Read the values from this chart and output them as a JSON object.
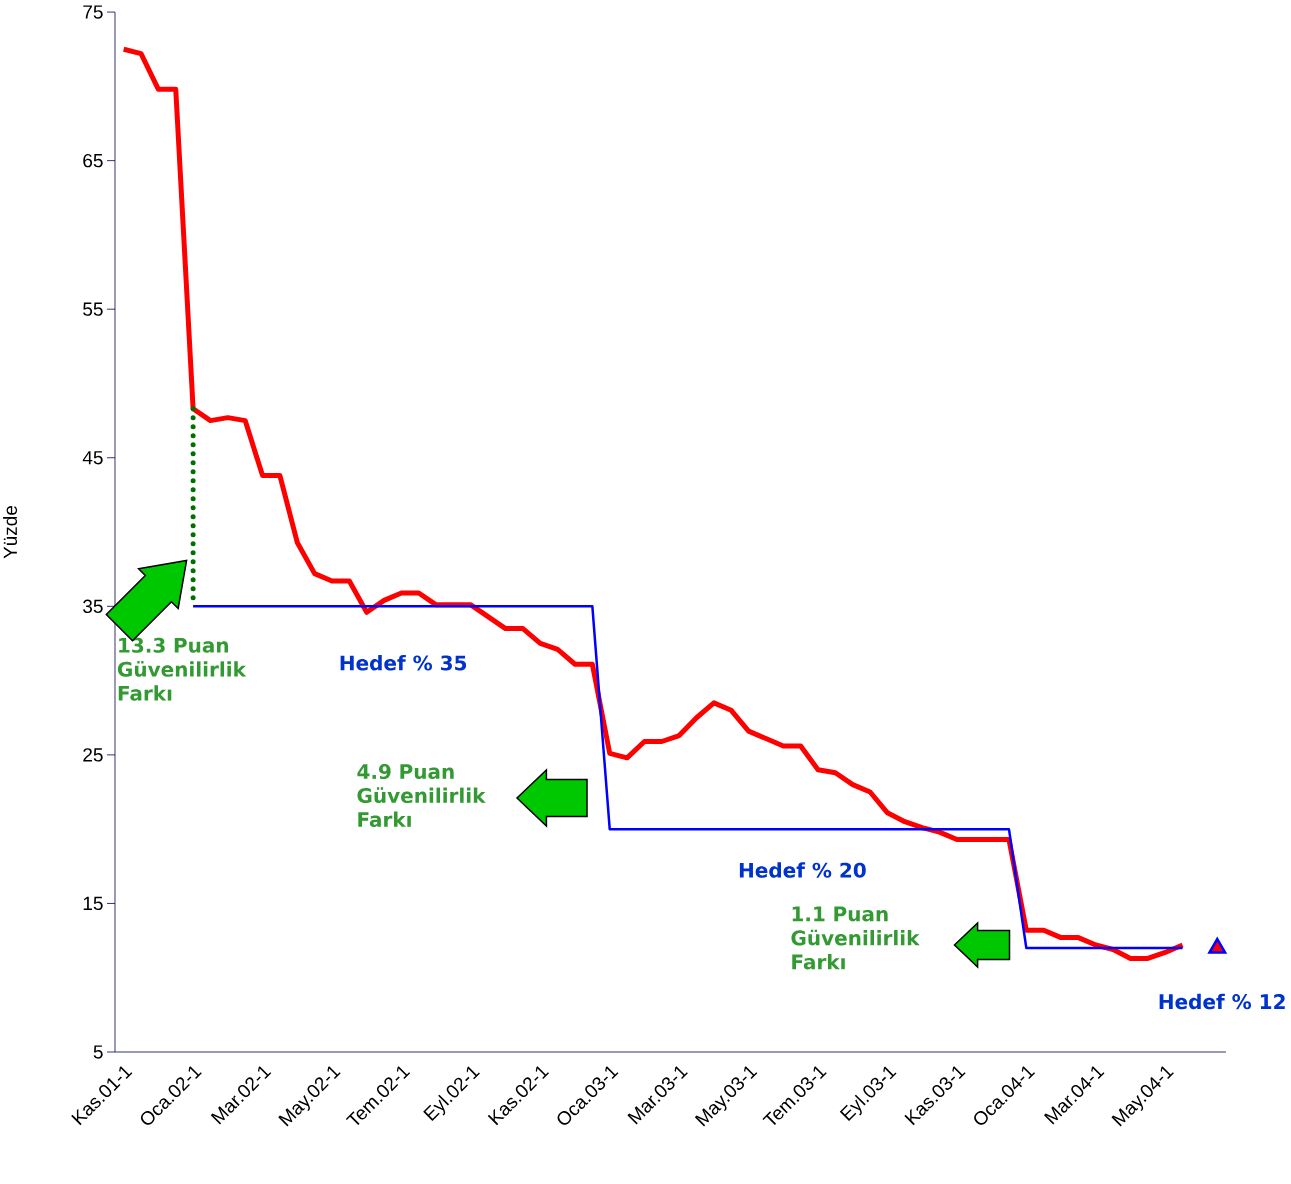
{
  "chart_data": {
    "type": "line",
    "ylabel": "Yüzde",
    "categories": [
      "Kas.01-1",
      null,
      null,
      null,
      "Oca.02-1",
      null,
      null,
      null,
      "Mar.02-1",
      null,
      null,
      null,
      "May.02-1",
      null,
      null,
      null,
      "Tem.02-1",
      null,
      null,
      null,
      "Eyl.02-1",
      null,
      null,
      null,
      "Kas.02-1",
      null,
      null,
      null,
      "Oca.03-1",
      null,
      null,
      null,
      "Mar.03-1",
      null,
      null,
      null,
      "May.03-1",
      null,
      null,
      null,
      "Tem.03-1",
      null,
      null,
      null,
      "Eyl.03-1",
      null,
      null,
      null,
      "Kas.03-1",
      null,
      null,
      null,
      "Oca.04-1",
      null,
      null,
      null,
      "Mar.04-1",
      null,
      null,
      null,
      "May.04-1",
      null,
      null,
      null
    ],
    "ylim": [
      5,
      75
    ],
    "yticks": [
      5,
      15,
      25,
      35,
      45,
      55,
      65,
      75
    ],
    "series": [
      {
        "color": "#ff0000",
        "values": [
          72.5,
          72.2,
          69.8,
          69.8,
          48.3,
          47.5,
          47.7,
          47.5,
          43.8,
          43.8,
          39.3,
          37.2,
          36.7,
          36.7,
          34.6,
          35.4,
          35.9,
          35.9,
          35.1,
          35.1,
          35.1,
          34.3,
          33.5,
          33.5,
          32.5,
          32.1,
          31.1,
          31.1,
          25.1,
          24.8,
          25.9,
          25.9,
          26.3,
          27.5,
          28.5,
          28.0,
          26.6,
          26.1,
          25.6,
          25.6,
          24.0,
          23.8,
          23.0,
          22.5,
          21.1,
          20.5,
          20.1,
          19.8,
          19.3,
          19.3,
          19.3,
          19.3,
          13.2,
          13.2,
          12.7,
          12.7,
          12.2,
          11.9,
          11.3,
          11.3,
          11.7,
          12.2,
          null,
          null
        ]
      },
      {
        "color": "#0000ff",
        "values": [
          null,
          null,
          null,
          null,
          35,
          35,
          35,
          35,
          35,
          35,
          35,
          35,
          35,
          35,
          35,
          35,
          35,
          35,
          35,
          35,
          35,
          35,
          35,
          35,
          35,
          35,
          35,
          35,
          20,
          20,
          20,
          20,
          20,
          20,
          20,
          20,
          20,
          20,
          20,
          20,
          20,
          20,
          20,
          20,
          20,
          20,
          20,
          20,
          20,
          20,
          20,
          20,
          12,
          12,
          12,
          12,
          12,
          12,
          12,
          12,
          12,
          12,
          null,
          null
        ]
      },
      {
        "color": "#007000",
        "line_style": "dotted",
        "x": [
          "Oca.02-1",
          "Oca.02-1"
        ],
        "values": [
          48.3,
          35
        ]
      },
      {
        "type": "scatter",
        "color": "#ff0000",
        "marker": "triangle",
        "values": [
          null,
          null,
          null,
          null,
          null,
          null,
          null,
          null,
          null,
          null,
          null,
          null,
          null,
          null,
          null,
          null,
          null,
          null,
          null,
          null,
          null,
          null,
          null,
          null,
          null,
          null,
          null,
          null,
          null,
          null,
          null,
          null,
          null,
          null,
          null,
          null,
          null,
          null,
          null,
          null,
          null,
          null,
          null,
          null,
          null,
          null,
          null,
          null,
          null,
          null,
          null,
          null,
          null,
          null,
          null,
          null,
          null,
          null,
          null,
          null,
          null,
          null,
          null,
          12
        ]
      }
    ],
    "annotations": [
      "13.3 Puan Güvenilirlik Farkı",
      "Hedef % 35",
      "4.9 Puan Güvenilirlik Farkı",
      "Hedef % 20",
      "1.1 Puan Güvenilirlik Farkı",
      "Hedef % 12"
    ]
  }
}
